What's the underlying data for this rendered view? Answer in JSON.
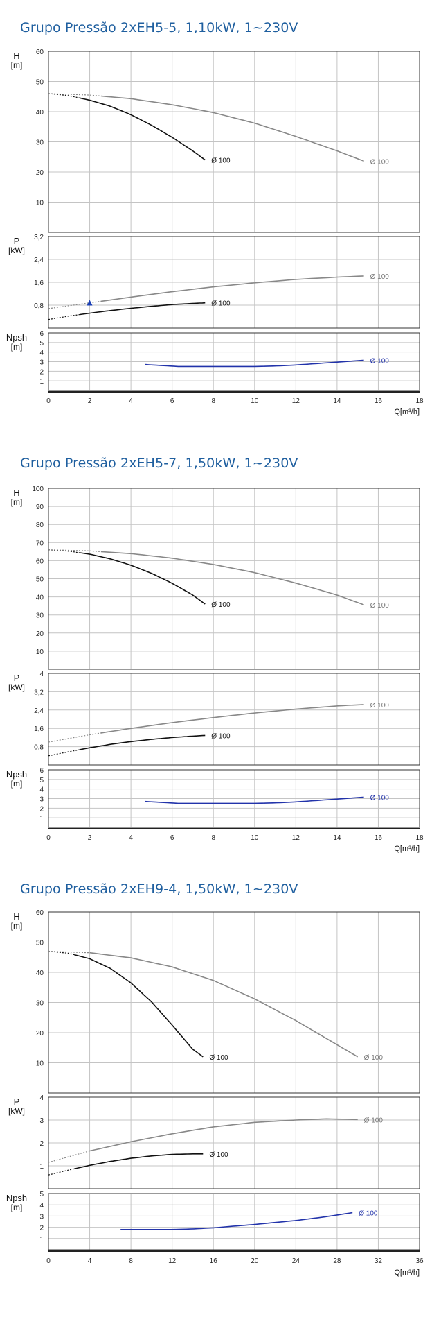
{
  "charts": [
    {
      "title": "Grupo Pressão 2xEH5-5, 1,10kW, 1~230V",
      "x_ticks": [
        "0",
        "2",
        "4",
        "6",
        "8",
        "10",
        "12",
        "14",
        "16",
        "18"
      ],
      "x_label": "Q[m³/h]"
    },
    {
      "title": "Grupo Pressão 2xEH5-7, 1,50kW, 1~230V",
      "x_ticks": [
        "0",
        "2",
        "4",
        "6",
        "8",
        "10",
        "12",
        "14",
        "16",
        "18"
      ],
      "x_label": "Q[m³/h]"
    },
    {
      "title": "Grupo Pressão 2xEH9-4, 1,50kW, 1~230V",
      "x_ticks": [
        "0",
        "4",
        "8",
        "12",
        "16",
        "20",
        "24",
        "28",
        "32",
        "36"
      ],
      "x_label": "Q[m³/h]"
    }
  ],
  "chart_data": [
    {
      "type": "line",
      "title": "Grupo Pressão 2xEH5-5, 1,10kW, 1~230V",
      "xlabel": "Q[m³/h]",
      "xlim": [
        0,
        18
      ],
      "panels": [
        {
          "name": "H",
          "ylabel": "H",
          "unit": "[m]",
          "ylim": [
            0,
            60
          ],
          "yticks": [
            10,
            20,
            30,
            40,
            50,
            60
          ],
          "ytick_labels": [
            "10",
            "20",
            "30",
            "40",
            "50",
            "60"
          ],
          "series": [
            {
              "name": "Ø 100",
              "color": "#111111",
              "dash_until": 1.6,
              "x": [
                0,
                1,
                2,
                3,
                4,
                5,
                6,
                7,
                7.6
              ],
              "y": [
                46,
                45.3,
                43.8,
                41.8,
                39,
                35.5,
                31.5,
                27,
                24
              ]
            },
            {
              "name": "Ø 100",
              "color": "#888888",
              "dash_until": 2.8,
              "x": [
                0,
                2,
                4,
                6,
                8,
                10,
                12,
                14,
                15.3
              ],
              "y": [
                46,
                45.5,
                44.3,
                42.3,
                39.7,
                36.2,
                31.8,
                27,
                23.6
              ]
            }
          ]
        },
        {
          "name": "P",
          "ylabel": "P",
          "unit": "[kW]",
          "ylim": [
            0,
            3.2
          ],
          "yticks": [
            0.8,
            1.6,
            2.4,
            3.2
          ],
          "ytick_labels": [
            "0,8",
            "1,6",
            "2,4",
            "3,2"
          ],
          "series": [
            {
              "name": "Ø 100",
              "color": "#111111",
              "dash_until": 1.6,
              "x": [
                0,
                1,
                2,
                3,
                4,
                5,
                6,
                7,
                7.6
              ],
              "y": [
                0.3,
                0.42,
                0.52,
                0.61,
                0.69,
                0.76,
                0.82,
                0.86,
                0.88
              ]
            },
            {
              "name": "Ø 100",
              "color": "#888888",
              "dash_until": 2.8,
              "x": [
                0,
                2,
                4,
                6,
                8,
                10,
                12,
                14,
                15.3
              ],
              "y": [
                0.68,
                0.88,
                1.08,
                1.27,
                1.44,
                1.58,
                1.7,
                1.78,
                1.82
              ]
            }
          ],
          "markers": [
            {
              "x": 2,
              "y": 0.86,
              "shape": "triangle",
              "color": "#1a3fb5"
            }
          ]
        },
        {
          "name": "Npsh",
          "ylabel": "Npsh",
          "unit": "[m]",
          "ylim": [
            0,
            6
          ],
          "yticks": [
            1,
            2,
            3,
            4,
            5,
            6
          ],
          "ytick_labels": [
            "1",
            "2",
            "3",
            "4",
            "5",
            "6"
          ],
          "series": [
            {
              "name": "Ø 100",
              "color": "#2233aa",
              "dash_until": null,
              "x": [
                4.7,
                5.5,
                6.3,
                8,
                10,
                11,
                12,
                13,
                14,
                15.3
              ],
              "y": [
                2.7,
                2.6,
                2.5,
                2.5,
                2.5,
                2.55,
                2.65,
                2.8,
                2.95,
                3.15
              ]
            }
          ]
        }
      ]
    },
    {
      "type": "line",
      "title": "Grupo Pressão 2xEH5-7, 1,50kW, 1~230V",
      "xlabel": "Q[m³/h]",
      "xlim": [
        0,
        18
      ],
      "panels": [
        {
          "name": "H",
          "ylabel": "H",
          "unit": "[m]",
          "ylim": [
            0,
            100
          ],
          "yticks": [
            10,
            20,
            30,
            40,
            50,
            60,
            70,
            80,
            90,
            100
          ],
          "ytick_labels": [
            "10",
            "20",
            "30",
            "40",
            "50",
            "60",
            "70",
            "80",
            "90",
            "100"
          ],
          "series": [
            {
              "name": "Ø 100",
              "color": "#111111",
              "dash_until": 1.6,
              "x": [
                0,
                1,
                2,
                3,
                4,
                5,
                6,
                7,
                7.6
              ],
              "y": [
                66,
                65.2,
                63.6,
                61,
                57.5,
                53,
                47.5,
                41,
                36
              ]
            },
            {
              "name": "Ø 100",
              "color": "#888888",
              "dash_until": 2.8,
              "x": [
                0,
                2,
                4,
                6,
                8,
                10,
                12,
                14,
                15.3
              ],
              "y": [
                66,
                65.4,
                63.9,
                61.4,
                57.9,
                53.4,
                47.6,
                41,
                35.6
              ]
            }
          ]
        },
        {
          "name": "P",
          "ylabel": "P",
          "unit": "[kW]",
          "ylim": [
            0,
            4
          ],
          "yticks": [
            0.8,
            1.6,
            2.4,
            3.2,
            4
          ],
          "ytick_labels": [
            "0,8",
            "1,6",
            "2,4",
            "3,2",
            "4"
          ],
          "series": [
            {
              "name": "Ø 100",
              "color": "#111111",
              "dash_until": 1.6,
              "x": [
                0,
                1,
                2,
                3,
                4,
                5,
                6,
                7,
                7.6
              ],
              "y": [
                0.4,
                0.58,
                0.75,
                0.9,
                1.02,
                1.12,
                1.2,
                1.26,
                1.29
              ]
            },
            {
              "name": "Ø 100",
              "color": "#888888",
              "dash_until": 2.8,
              "x": [
                0,
                2,
                4,
                6,
                8,
                10,
                12,
                14,
                15.3
              ],
              "y": [
                1.0,
                1.32,
                1.6,
                1.85,
                2.07,
                2.27,
                2.44,
                2.58,
                2.64
              ]
            }
          ]
        },
        {
          "name": "Npsh",
          "ylabel": "Npsh",
          "unit": "[m]",
          "ylim": [
            0,
            6
          ],
          "yticks": [
            1,
            2,
            3,
            4,
            5,
            6
          ],
          "ytick_labels": [
            "1",
            "2",
            "3",
            "4",
            "5",
            "6"
          ],
          "series": [
            {
              "name": "Ø 100",
              "color": "#2233aa",
              "dash_until": null,
              "x": [
                4.7,
                5.5,
                6.3,
                8,
                10,
                11,
                12,
                13,
                14,
                15.3
              ],
              "y": [
                2.7,
                2.6,
                2.5,
                2.5,
                2.5,
                2.55,
                2.65,
                2.8,
                2.95,
                3.15
              ]
            }
          ]
        }
      ]
    },
    {
      "type": "line",
      "title": "Grupo Pressão 2xEH9-4, 1,50kW, 1~230V",
      "xlabel": "Q[m³/h]",
      "xlim": [
        0,
        36
      ],
      "panels": [
        {
          "name": "H",
          "ylabel": "H",
          "unit": "[m]",
          "ylim": [
            0,
            60
          ],
          "yticks": [
            10,
            20,
            30,
            40,
            50,
            60
          ],
          "ytick_labels": [
            "10",
            "20",
            "30",
            "40",
            "50",
            "60"
          ],
          "series": [
            {
              "name": "Ø 100",
              "color": "#111111",
              "dash_until": 2.5,
              "x": [
                0,
                2,
                4,
                6,
                8,
                10,
                12,
                14,
                15
              ],
              "y": [
                47,
                46.3,
                44.5,
                41.3,
                36.5,
                30.2,
                22.5,
                14.5,
                12
              ]
            },
            {
              "name": "Ø 100",
              "color": "#888888",
              "dash_until": 4,
              "x": [
                0,
                4,
                8,
                12,
                16,
                20,
                24,
                28,
                30
              ],
              "y": [
                47,
                46.5,
                44.8,
                41.8,
                37.3,
                31.2,
                24,
                16,
                12
              ]
            }
          ]
        },
        {
          "name": "P",
          "ylabel": "P",
          "unit": "[kW]",
          "ylim": [
            0,
            4
          ],
          "yticks": [
            1,
            2,
            3,
            4
          ],
          "ytick_labels": [
            "1",
            "2",
            "3",
            "4"
          ],
          "series": [
            {
              "name": "Ø 100",
              "color": "#111111",
              "dash_until": 2.5,
              "x": [
                0,
                2,
                4,
                6,
                8,
                10,
                12,
                14,
                15
              ],
              "y": [
                0.6,
                0.82,
                1.02,
                1.19,
                1.33,
                1.43,
                1.5,
                1.52,
                1.52
              ]
            },
            {
              "name": "Ø 100",
              "color": "#888888",
              "dash_until": 4,
              "x": [
                0,
                4,
                8,
                12,
                16,
                20,
                24,
                27,
                30
              ],
              "y": [
                1.15,
                1.65,
                2.05,
                2.4,
                2.7,
                2.9,
                3.0,
                3.05,
                3.02
              ]
            }
          ]
        },
        {
          "name": "Npsh",
          "ylabel": "Npsh",
          "unit": "[m]",
          "ylim": [
            0,
            5
          ],
          "yticks": [
            1,
            2,
            3,
            4,
            5
          ],
          "ytick_labels": [
            "1",
            "2",
            "3",
            "4",
            "5"
          ],
          "series": [
            {
              "name": "Ø 100",
              "color": "#2233aa",
              "dash_until": null,
              "x": [
                7,
                10,
                12,
                14,
                16,
                20,
                24,
                27,
                29.5
              ],
              "y": [
                1.8,
                1.8,
                1.8,
                1.85,
                1.95,
                2.25,
                2.6,
                2.95,
                3.3
              ]
            }
          ]
        }
      ]
    }
  ]
}
